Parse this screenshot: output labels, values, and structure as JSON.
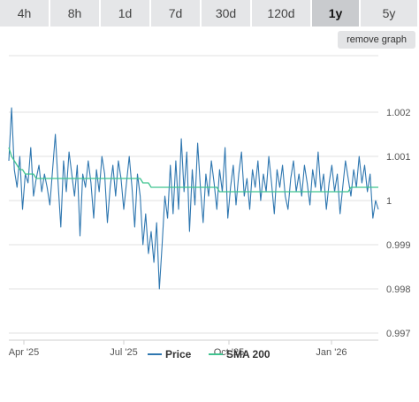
{
  "tabs": [
    {
      "label": "4h"
    },
    {
      "label": "8h"
    },
    {
      "label": "1d"
    },
    {
      "label": "7d"
    },
    {
      "label": "30d"
    },
    {
      "label": "120d"
    },
    {
      "label": "1y",
      "active": true
    },
    {
      "label": "5y"
    }
  ],
  "remove_graph_label": "remove graph",
  "colors": {
    "price": "#2f77b0",
    "sma": "#3fc38f",
    "active_tab": "#c9cbce",
    "tab": "#e5e6e8"
  },
  "chart_data": {
    "type": "line",
    "title": "",
    "xlabel": "",
    "ylabel": "",
    "ylim": [
      0.997,
      1.0023
    ],
    "y_ticks": [
      "1.002",
      "1.001",
      "1",
      "0.999",
      "0.998",
      "0.997"
    ],
    "x_ticks": [
      "Apr '25",
      "Jul '25",
      "Oct '25",
      "Jan '26"
    ],
    "grid": true,
    "legend_position": "bottom",
    "series": [
      {
        "name": "Price",
        "color": "#2f77b0",
        "values": [
          1.0009,
          1.0021,
          1.0007,
          1.0003,
          1.001,
          0.9998,
          1.0006,
          1.0004,
          1.0012,
          1.0001,
          1.0005,
          1.0008,
          1.0002,
          1.0006,
          1.0003,
          0.9999,
          1.0007,
          1.0015,
          1.0004,
          0.9994,
          1.0009,
          1.0002,
          1.0011,
          1.0006,
          1.0001,
          1.0008,
          0.9992,
          1.0006,
          1.0003,
          1.0009,
          1.0004,
          0.9996,
          1.0007,
          1.0002,
          1.001,
          1.0006,
          0.9995,
          1.0003,
          1.0008,
          1.0001,
          1.0009,
          1.0005,
          0.9998,
          1.0004,
          1.001,
          1.0003,
          0.9994,
          1.0006,
          1.0001,
          0.999,
          0.9997,
          0.9988,
          0.9993,
          0.9986,
          0.9995,
          0.998,
          0.999,
          1.0001,
          0.9996,
          1.0008,
          0.9997,
          1.0009,
          0.9998,
          1.0014,
          1.0002,
          1.0011,
          0.9993,
          1.0007,
          0.9999,
          1.0013,
          1.0003,
          0.9995,
          1.0006,
          1.0001,
          1.0009,
          1.0004,
          0.9998,
          1.0007,
          1.0002,
          1.0012,
          0.9996,
          1.0003,
          1.0008,
          0.9999,
          1.0006,
          1.0011,
          1.0001,
          1.0005,
          0.9998,
          1.0007,
          1.0003,
          1.0009,
          1.0,
          1.0006,
          1.0002,
          1.001,
          1.0004,
          0.9997,
          1.0007,
          1.0003,
          1.0008,
          1.0001,
          0.9998,
          1.0005,
          1.0009,
          1.0002,
          1.0006,
          1.0001,
          1.0008,
          1.0004,
          0.9999,
          1.0007,
          1.0003,
          1.0011,
          1.0002,
          1.0006,
          0.9998,
          1.0004,
          1.0008,
          1.0002,
          1.0006,
          0.9997,
          1.0003,
          1.0009,
          1.0005,
          1.0001,
          1.0007,
          1.0003,
          1.001,
          1.0004,
          1.0008,
          1.0002,
          1.0006,
          0.9996,
          1.0,
          0.9998
        ]
      },
      {
        "name": "SMA 200",
        "color": "#3fc38f",
        "values": [
          1.0012,
          1.001,
          1.0009,
          1.0008,
          1.0007,
          1.0007,
          1.0006,
          1.0006,
          1.0006,
          1.0006,
          1.0005,
          1.0005,
          1.0005,
          1.0005,
          1.0005,
          1.0005,
          1.0005,
          1.0005,
          1.0005,
          1.0005,
          1.0005,
          1.0005,
          1.0005,
          1.0005,
          1.0005,
          1.0005,
          1.0005,
          1.0005,
          1.0005,
          1.0005,
          1.0005,
          1.0005,
          1.0005,
          1.0005,
          1.0005,
          1.0005,
          1.0005,
          1.0005,
          1.0005,
          1.0005,
          1.0005,
          1.0005,
          1.0005,
          1.0005,
          1.0005,
          1.0005,
          1.0005,
          1.0005,
          1.0005,
          1.0004,
          1.0004,
          1.0004,
          1.0003,
          1.0003,
          1.0003,
          1.0003,
          1.0003,
          1.0003,
          1.0003,
          1.0003,
          1.0003,
          1.0003,
          1.0003,
          1.0003,
          1.0003,
          1.0003,
          1.0003,
          1.0003,
          1.0003,
          1.0003,
          1.0003,
          1.0003,
          1.0003,
          1.0003,
          1.0003,
          1.0003,
          1.0003,
          1.0002,
          1.0002,
          1.0002,
          1.0002,
          1.0002,
          1.0002,
          1.0002,
          1.0002,
          1.0002,
          1.0002,
          1.0002,
          1.0002,
          1.0002,
          1.0002,
          1.0002,
          1.0002,
          1.0002,
          1.0002,
          1.0002,
          1.0002,
          1.0002,
          1.0002,
          1.0002,
          1.0002,
          1.0002,
          1.0002,
          1.0002,
          1.0002,
          1.0002,
          1.0002,
          1.0002,
          1.0002,
          1.0002,
          1.0002,
          1.0002,
          1.0002,
          1.0002,
          1.0002,
          1.0002,
          1.0002,
          1.0002,
          1.0002,
          1.0002,
          1.0002,
          1.0002,
          1.0002,
          1.0002,
          1.0002,
          1.0003,
          1.0003,
          1.0003,
          1.0003,
          1.0003,
          1.0003,
          1.0003,
          1.0003,
          1.0003,
          1.0003,
          1.0003
        ]
      }
    ]
  }
}
